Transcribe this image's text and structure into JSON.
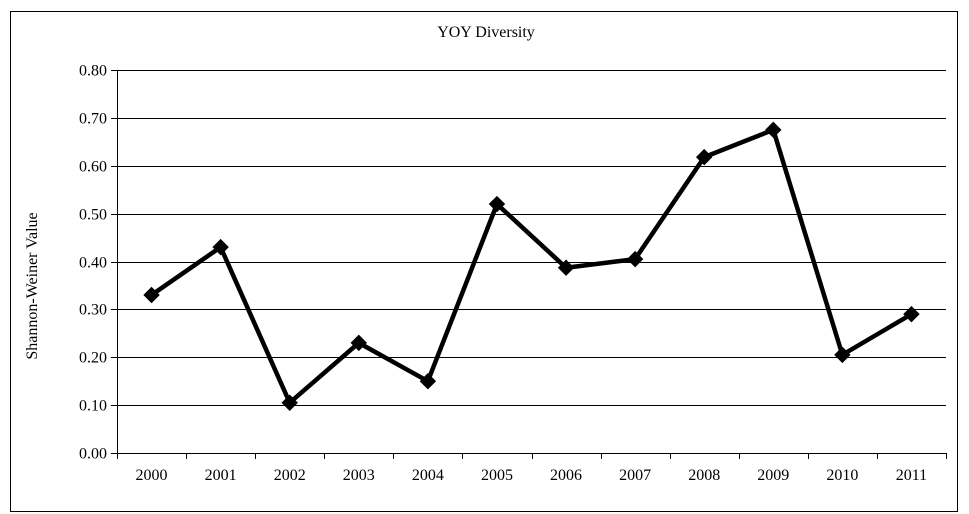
{
  "chart_data": {
    "type": "line",
    "title": "YOY Diversity",
    "xlabel": "",
    "ylabel": "Shannon-Weiner Value",
    "categories": [
      "2000",
      "2001",
      "2002",
      "2003",
      "2004",
      "2005",
      "2006",
      "2007",
      "2008",
      "2009",
      "2010",
      "2011"
    ],
    "series": [
      {
        "values": [
          0.33,
          0.43,
          0.105,
          0.23,
          0.15,
          0.52,
          0.387,
          0.405,
          0.618,
          0.675,
          0.205,
          0.29
        ],
        "color": "#000000",
        "marker": "diamond"
      }
    ],
    "ylim": [
      0,
      0.8
    ],
    "yticks": [
      "0.00",
      "0.10",
      "0.20",
      "0.30",
      "0.40",
      "0.50",
      "0.60",
      "0.70",
      "0.80"
    ],
    "grid": "horizontal",
    "legend": "none"
  }
}
